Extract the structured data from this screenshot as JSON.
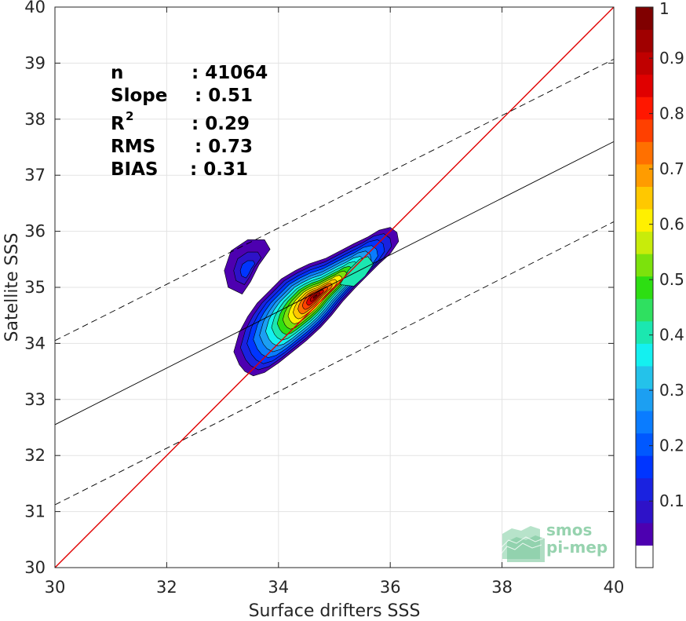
{
  "chart_data": {
    "type": "contour",
    "xlabel": "Surface drifters SSS",
    "ylabel": "Satellite SSS",
    "xlim": [
      30,
      40
    ],
    "ylim": [
      30,
      40
    ],
    "xticks": [
      "30",
      "32",
      "34",
      "36",
      "38",
      "40"
    ],
    "yticks": [
      "30",
      "31",
      "32",
      "33",
      "34",
      "35",
      "36",
      "37",
      "38",
      "39",
      "40"
    ],
    "grid": true,
    "stats": [
      {
        "label": "n",
        "value": ": 41064"
      },
      {
        "label": "Slope",
        "value": ": 0.51"
      },
      {
        "label": "R",
        "sup": "2",
        "value": ": 0.29"
      },
      {
        "label": "RMS",
        "value": ": 0.73"
      },
      {
        "label": "BIAS",
        "value": ": 0.31"
      }
    ],
    "identity_line": {
      "from": [
        30,
        30
      ],
      "to": [
        40,
        40
      ],
      "color": "#e00000"
    },
    "fit_line": {
      "from": [
        30,
        32.55
      ],
      "to": [
        40,
        37.6
      ],
      "color": "#000000"
    },
    "upper_bound_line": {
      "from": [
        30,
        34.05
      ],
      "to": [
        40,
        39.07
      ],
      "style": "dashed"
    },
    "lower_bound_line": {
      "from": [
        30,
        31.12
      ],
      "to": [
        40,
        36.17
      ],
      "style": "dashed"
    },
    "density_peak": {
      "x": 34.62,
      "y": 34.72,
      "value": 1.0
    },
    "secondary_cluster": {
      "x": 33.45,
      "y": 35.3
    },
    "colorbar": {
      "ticks": [
        "0.1",
        "0.2",
        "0.3",
        "0.4",
        "0.5",
        "0.6",
        "0.7",
        "0.8",
        "0.9",
        "1"
      ],
      "levels": [
        "#ffffff",
        "#4d00b0",
        "#2e12c8",
        "#1a22e0",
        "#0035ff",
        "#0058ff",
        "#0a7cff",
        "#1c9ff2",
        "#24c2ea",
        "#14f0f0",
        "#1be7b0",
        "#2fe060",
        "#2dde12",
        "#7ce20c",
        "#c8ec0a",
        "#fff000",
        "#ffc800",
        "#ff9c00",
        "#ff7000",
        "#ff4000",
        "#ff1700",
        "#e00000",
        "#c00000",
        "#a00000",
        "#800000"
      ]
    }
  },
  "watermark": {
    "line1": "smos",
    "line2": "pi-mep"
  }
}
